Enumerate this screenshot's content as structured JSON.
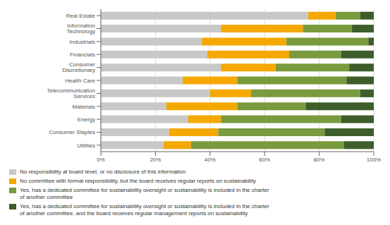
{
  "chart_data": {
    "type": "bar",
    "orientation": "horizontal",
    "stacked": true,
    "categories": [
      "Real Estate",
      "Information Technology",
      "Industrials",
      "Financials",
      "Consumer Discretionary",
      "Health Care",
      "Telecommunication Services",
      "Materials",
      "Energy",
      "Consumer Staples",
      "Utilities"
    ],
    "series": [
      {
        "name": "No responsibility at board level, or no disclosure of this information",
        "color": "#c8c9c7",
        "values": [
          76,
          44,
          37,
          39,
          44,
          30,
          40,
          24,
          32,
          25,
          23
        ]
      },
      {
        "name": "No committee with formal responsibility, but the board receives regular reports on sustainability",
        "color": "#f5a800",
        "values": [
          10,
          30,
          31,
          30,
          20,
          20,
          15,
          26,
          12,
          18,
          10
        ]
      },
      {
        "name": "Yes, has a dedicated committee for sustainability oversight or sustainability is included in the charter\nof another committee",
        "color": "#7a9a3e",
        "values": [
          9,
          18,
          30,
          19,
          27,
          40,
          40,
          25,
          44,
          39,
          56
        ]
      },
      {
        "name": "Yes, has a dedicated committee for sustainability oversight or sustainability is included in the charter\nof another committee, and the board receives regular management reports on sustainability",
        "color": "#3d5e2a",
        "values": [
          5,
          8,
          2,
          12,
          9,
          10,
          5,
          25,
          12,
          18,
          11
        ]
      }
    ],
    "xlim": [
      0,
      100
    ],
    "xticks": [
      {
        "value": 0,
        "label": "0%"
      },
      {
        "value": 20,
        "label": "20%"
      },
      {
        "value": 40,
        "label": "40%"
      },
      {
        "value": 60,
        "label": "60%"
      },
      {
        "value": 80,
        "label": "80%"
      },
      {
        "value": 100,
        "label": "100%"
      }
    ],
    "grid": true,
    "legend": "lower left"
  }
}
